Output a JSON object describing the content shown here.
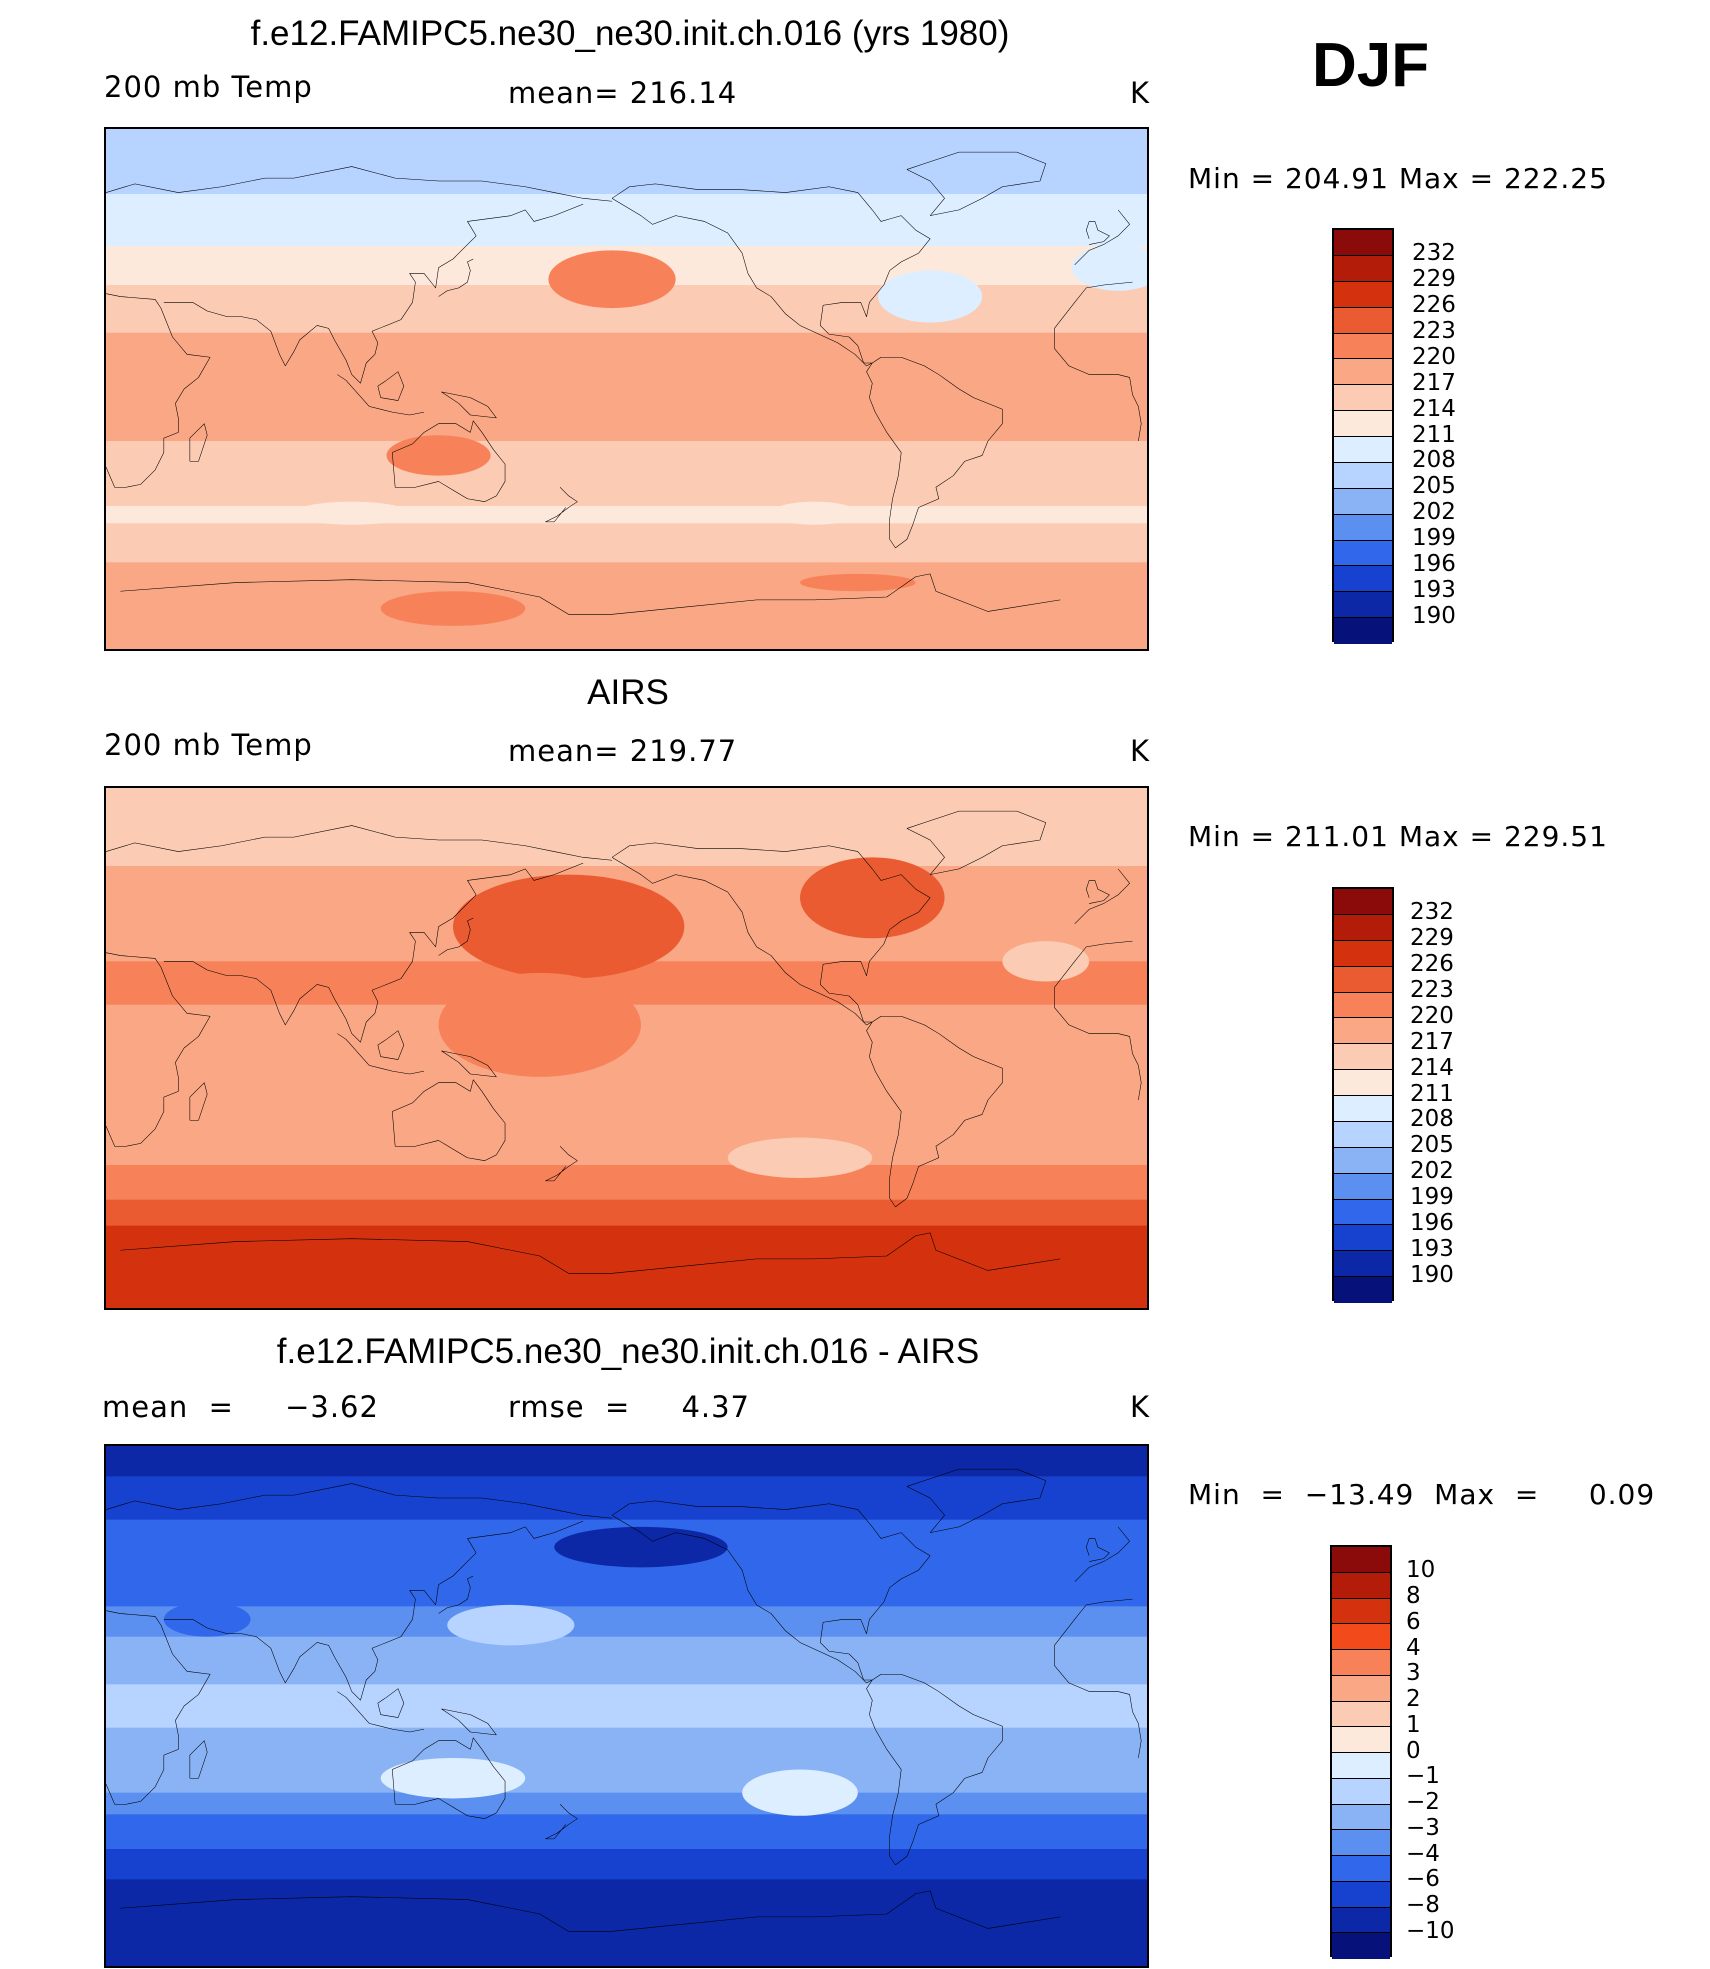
{
  "season": "DJF",
  "chart_data": [
    {
      "type": "heatmap",
      "title": "f.e12.FAMIPC5.ne30_ne30.init.ch.016 (yrs 1980)",
      "left_label": "200 mb Temp",
      "stat_label": "mean= 216.14",
      "units": "K",
      "min_max_label": "Min  =  204.91  Max  =  222.25",
      "min": 204.91,
      "max": 222.25,
      "mean": 216.14,
      "levels": [
        "232",
        "229",
        "226",
        "223",
        "220",
        "217",
        "214",
        "211",
        "208",
        "205",
        "202",
        "199",
        "196",
        "193",
        "190"
      ],
      "colors": [
        "#8b0a0a",
        "#b41c0a",
        "#d4320e",
        "#ea5b32",
        "#f7825a",
        "#f9a784",
        "#fbcbb4",
        "#fde9dc",
        "#dceeff",
        "#b7d3ff",
        "#8ab3f6",
        "#5b8ff0",
        "#3168eb",
        "#1742cf",
        "#0c28a6",
        "#06117a"
      ],
      "bands": [
        {
          "lat": 90,
          "value": 206
        },
        {
          "lat": 75,
          "value": 207
        },
        {
          "lat": 60,
          "value": 209
        },
        {
          "lat": 45,
          "value": 212
        },
        {
          "lat": 30,
          "value": 215.5
        },
        {
          "lat": 15,
          "value": 217.5
        },
        {
          "lat": 0,
          "value": 218
        },
        {
          "lat": -15,
          "value": 217.5
        },
        {
          "lat": -30,
          "value": 215
        },
        {
          "lat": -45,
          "value": 213.5
        },
        {
          "lat": -60,
          "value": 217
        },
        {
          "lat": -75,
          "value": 219
        },
        {
          "lat": -90,
          "value": 218
        }
      ],
      "blobs": [
        {
          "lon": 190,
          "lat": 38,
          "rlon": 22,
          "rlat": 10,
          "value": 220.5
        },
        {
          "lon": 130,
          "lat": -23,
          "rlon": 18,
          "rlat": 7,
          "value": 220.5
        },
        {
          "lon": 275,
          "lat": -67,
          "rlon": 20,
          "rlat": 3,
          "value": 220.5
        },
        {
          "lon": 135,
          "lat": -76,
          "rlon": 25,
          "rlat": 6,
          "value": 220.5
        },
        {
          "lon": 300,
          "lat": 32,
          "rlon": 18,
          "rlat": 9,
          "value": 209
        },
        {
          "lon": 365,
          "lat": 42,
          "rlon": 16,
          "rlat": 8,
          "value": 209
        },
        {
          "lon": 100,
          "lat": -43,
          "rlon": 20,
          "rlat": 4,
          "value": 211.5
        },
        {
          "lon": 260,
          "lat": -43,
          "rlon": 15,
          "rlat": 4,
          "value": 211.5
        }
      ]
    },
    {
      "type": "heatmap",
      "title": "AIRS",
      "left_label": "200 mb Temp",
      "stat_label": "mean= 219.77",
      "units": "K",
      "min_max_label": "Min  =  211.01  Max  =  229.51",
      "min": 211.01,
      "max": 229.51,
      "mean": 219.77,
      "levels": [
        "232",
        "229",
        "226",
        "223",
        "220",
        "217",
        "214",
        "211",
        "208",
        "205",
        "202",
        "199",
        "196",
        "193",
        "190"
      ],
      "colors": [
        "#8b0a0a",
        "#b41c0a",
        "#d4320e",
        "#ea5b32",
        "#f7825a",
        "#f9a784",
        "#fbcbb4",
        "#fde9dc",
        "#dceeff",
        "#b7d3ff",
        "#8ab3f6",
        "#5b8ff0",
        "#3168eb",
        "#1742cf",
        "#0c28a6",
        "#06117a"
      ],
      "bands": [
        {
          "lat": 90,
          "value": 216
        },
        {
          "lat": 75,
          "value": 215
        },
        {
          "lat": 60,
          "value": 217.5
        },
        {
          "lat": 45,
          "value": 219
        },
        {
          "lat": 30,
          "value": 220
        },
        {
          "lat": 15,
          "value": 220
        },
        {
          "lat": 0,
          "value": 219.5
        },
        {
          "lat": -15,
          "value": 219.5
        },
        {
          "lat": -30,
          "value": 219
        },
        {
          "lat": -45,
          "value": 220.5
        },
        {
          "lat": -55,
          "value": 224
        },
        {
          "lat": -65,
          "value": 227
        },
        {
          "lat": -75,
          "value": 227
        },
        {
          "lat": -90,
          "value": 227
        }
      ],
      "blobs": [
        {
          "lon": 175,
          "lat": 42,
          "rlon": 40,
          "rlat": 18,
          "value": 224
        },
        {
          "lon": 280,
          "lat": 52,
          "rlon": 25,
          "rlat": 14,
          "value": 224
        },
        {
          "lon": 165,
          "lat": 8,
          "rlon": 35,
          "rlat": 18,
          "value": 221.5
        },
        {
          "lon": 255,
          "lat": -38,
          "rlon": 25,
          "rlat": 7,
          "value": 216
        },
        {
          "lon": 340,
          "lat": 30,
          "rlon": 15,
          "rlat": 7,
          "value": 216
        }
      ]
    },
    {
      "type": "heatmap",
      "title": "f.e12.FAMIPC5.ne30_ne30.init.ch.016 - AIRS",
      "left_label": "mean  =     −3.62",
      "stat_label": "rmse  =     4.37",
      "units": "K",
      "min_max_label": "Min  =  −13.49  Max  =     0.09",
      "min": -13.49,
      "max": 0.09,
      "mean": -3.62,
      "rmse": 4.37,
      "levels": [
        "10",
        "8",
        "6",
        "4",
        "3",
        "2",
        "1",
        "0",
        "−1",
        "−2",
        "−3",
        "−4",
        "−6",
        "−8",
        "−10"
      ],
      "colors": [
        "#8b0a0a",
        "#b41c0a",
        "#d4320e",
        "#f24a1a",
        "#f7825a",
        "#f9a784",
        "#fbcbb4",
        "#fde9dc",
        "#dceeff",
        "#b7d3ff",
        "#8ab3f6",
        "#5b8ff0",
        "#3168eb",
        "#1742cf",
        "#0c28a6",
        "#06117a"
      ],
      "bands": [
        {
          "lat": 90,
          "value": -9
        },
        {
          "lat": 75,
          "value": -7.5
        },
        {
          "lat": 60,
          "value": -5.5
        },
        {
          "lat": 45,
          "value": -5
        },
        {
          "lat": 30,
          "value": -3.5
        },
        {
          "lat": 15,
          "value": -2.2
        },
        {
          "lat": 0,
          "value": -1.8
        },
        {
          "lat": -15,
          "value": -2.2
        },
        {
          "lat": -30,
          "value": -3
        },
        {
          "lat": -45,
          "value": -5
        },
        {
          "lat": -55,
          "value": -7
        },
        {
          "lat": -65,
          "value": -9
        },
        {
          "lat": -90,
          "value": -9.5
        }
      ],
      "blobs": [
        {
          "lon": 135,
          "lat": -25,
          "rlon": 25,
          "rlat": 7,
          "value": -0.5
        },
        {
          "lon": 255,
          "lat": -30,
          "rlon": 20,
          "rlat": 8,
          "value": -0.5
        },
        {
          "lon": 155,
          "lat": 28,
          "rlon": 22,
          "rlat": 7,
          "value": -1.5
        },
        {
          "lon": 50,
          "lat": 30,
          "rlon": 15,
          "rlat": 6,
          "value": -5
        },
        {
          "lon": 200,
          "lat": 55,
          "rlon": 30,
          "rlat": 7,
          "value": -8.5
        }
      ]
    }
  ]
}
